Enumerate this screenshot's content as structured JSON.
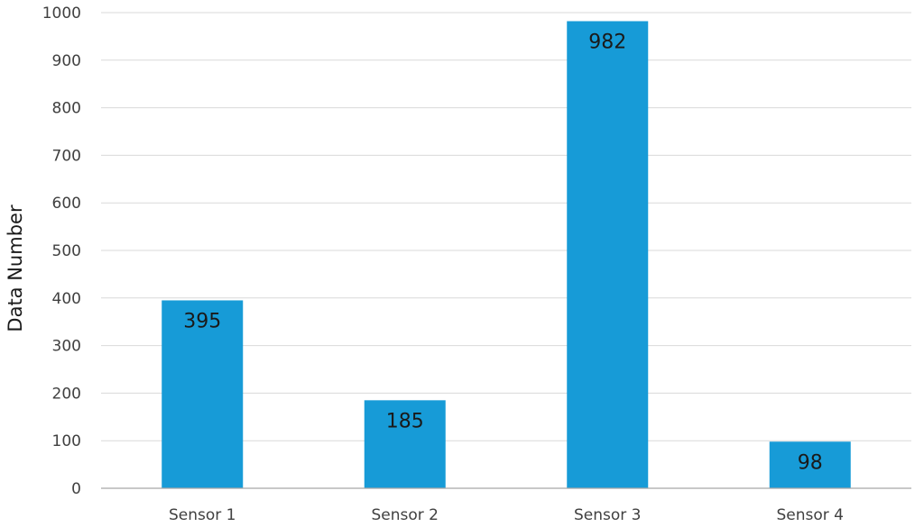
{
  "chart_data": {
    "type": "bar",
    "categories": [
      "Sensor 1",
      "Sensor 2",
      "Sensor 3",
      "Sensor 4"
    ],
    "values": [
      395,
      185,
      982,
      98
    ],
    "title": "",
    "xlabel": "",
    "ylabel": "Data Number",
    "ylim": [
      0,
      1000
    ],
    "yticks": [
      0,
      100,
      200,
      300,
      400,
      500,
      600,
      700,
      800,
      900,
      1000
    ],
    "grid": true,
    "legend": "none",
    "bar_color": "#179bd7",
    "data_labels": [
      "395",
      "185",
      "982",
      "98"
    ]
  }
}
